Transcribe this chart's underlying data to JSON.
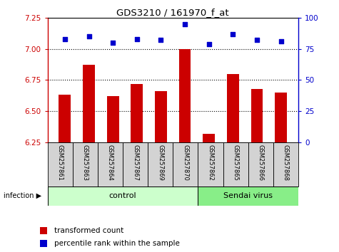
{
  "title": "GDS3210 / 161970_f_at",
  "samples": [
    "GSM257861",
    "GSM257863",
    "GSM257864",
    "GSM257867",
    "GSM257869",
    "GSM257870",
    "GSM257862",
    "GSM257865",
    "GSM257866",
    "GSM257868"
  ],
  "transformed_counts": [
    6.63,
    6.87,
    6.62,
    6.72,
    6.66,
    7.0,
    6.32,
    6.8,
    6.68,
    6.65
  ],
  "percentile_ranks": [
    83,
    85,
    80,
    83,
    82,
    95,
    79,
    87,
    82,
    81
  ],
  "n_control": 6,
  "n_sendai": 4,
  "ylim_left": [
    6.25,
    7.25
  ],
  "ylim_right": [
    0,
    100
  ],
  "yticks_left": [
    6.25,
    6.5,
    6.75,
    7.0,
    7.25
  ],
  "yticks_right": [
    0,
    25,
    50,
    75,
    100
  ],
  "bar_color": "#cc0000",
  "dot_color": "#0000cc",
  "control_color": "#ccffcc",
  "sendai_color": "#88ee88",
  "legend_items": [
    "transformed count",
    "percentile rank within the sample"
  ],
  "hline_values": [
    6.5,
    6.75,
    7.0
  ],
  "bar_width": 0.5
}
